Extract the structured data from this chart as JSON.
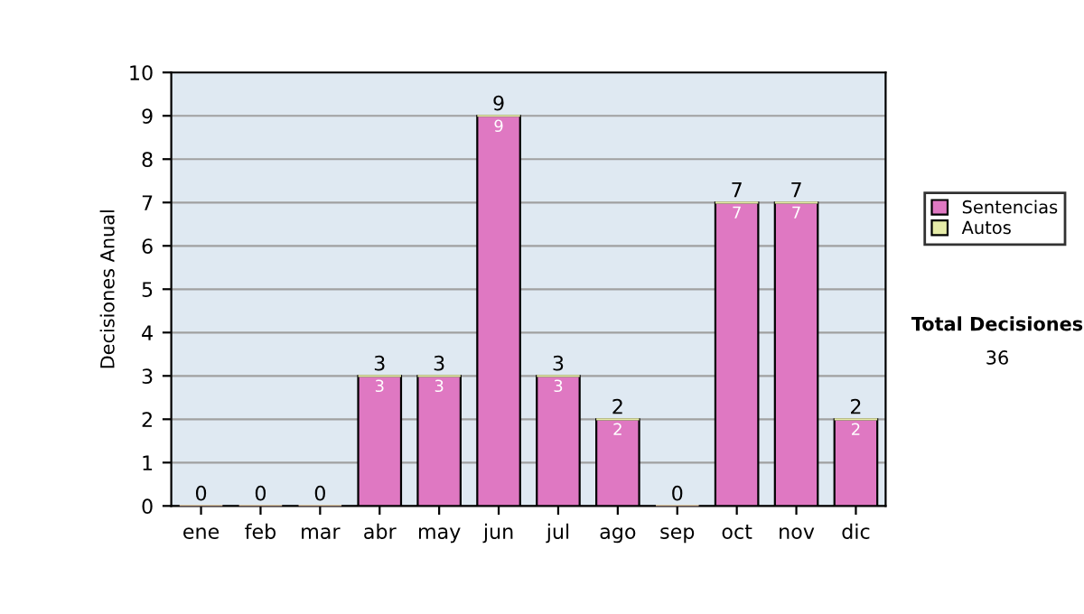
{
  "chart_data": {
    "type": "bar",
    "ylabel": "Decisiones Anual",
    "categories": [
      "ene",
      "feb",
      "mar",
      "abr",
      "may",
      "jun",
      "jul",
      "ago",
      "sep",
      "oct",
      "nov",
      "dic"
    ],
    "stacked": true,
    "series": [
      {
        "name": "Sentencias",
        "color": "#df78c2",
        "values": [
          0,
          0,
          0,
          3,
          3,
          9,
          3,
          2,
          0,
          7,
          7,
          2
        ],
        "value_labels": [
          null,
          null,
          null,
          "3",
          "3",
          "9",
          "3",
          "2",
          null,
          "7",
          "7",
          "2"
        ]
      },
      {
        "name": "Autos",
        "color": "#e6eca8",
        "values": [
          0,
          0,
          0,
          0,
          0,
          0,
          0,
          0,
          0,
          0,
          0,
          0
        ]
      }
    ],
    "totals": [
      "0",
      "0",
      "0",
      "3",
      "3",
      "9",
      "3",
      "2",
      "0",
      "7",
      "7",
      "2"
    ],
    "ylim": [
      0,
      10
    ],
    "yticks": [
      0,
      1,
      2,
      3,
      4,
      5,
      6,
      7,
      8,
      9,
      10
    ],
    "grid": "y",
    "legend": "right",
    "annotations": [
      "Total Decisiones",
      "36"
    ]
  }
}
